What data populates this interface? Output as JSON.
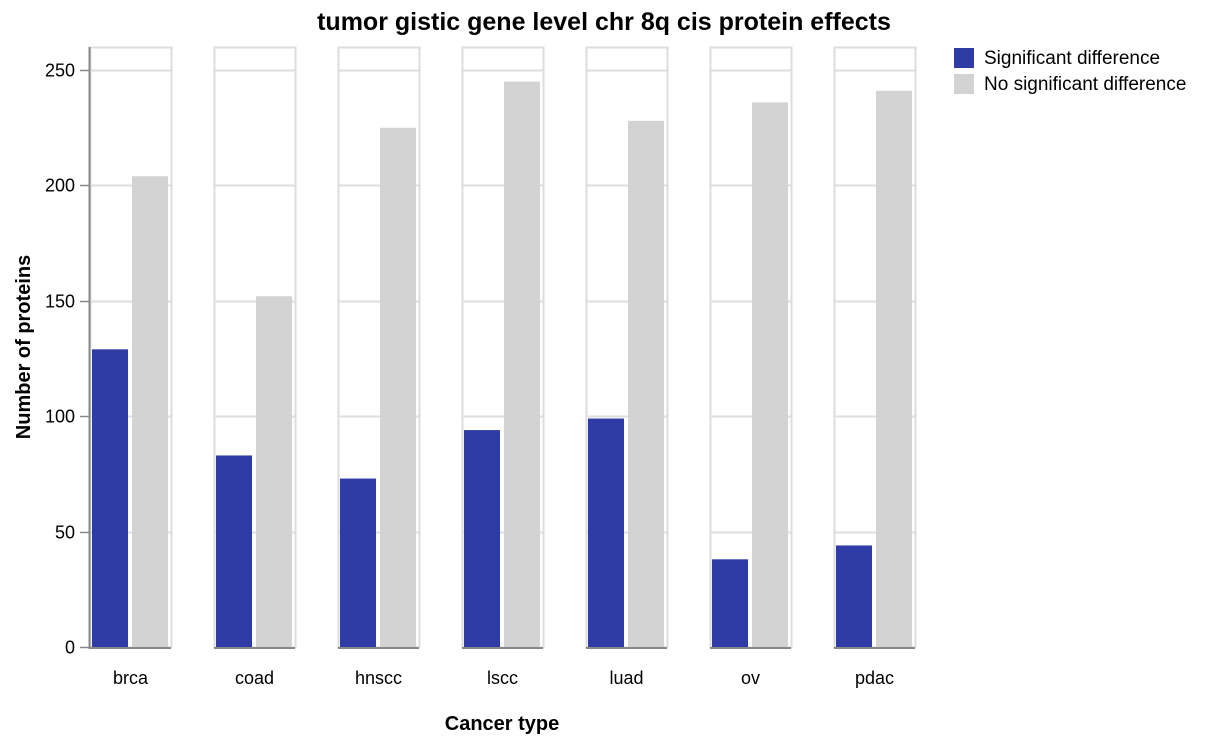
{
  "chart_data": {
    "type": "bar",
    "title": "tumor gistic gene level chr 8q cis protein effects",
    "xlabel": "Cancer type",
    "ylabel": "Number of proteins",
    "ylim": [
      0,
      260
    ],
    "yticks": [
      0,
      50,
      100,
      150,
      200,
      250
    ],
    "categories": [
      "brca",
      "coad",
      "hnscc",
      "lscc",
      "luad",
      "ov",
      "pdac"
    ],
    "series": [
      {
        "name": "Significant difference",
        "color": "#2f3ca6",
        "values": [
          129,
          83,
          73,
          94,
          99,
          38,
          44
        ]
      },
      {
        "name": "No significant difference",
        "color": "#d3d3d3",
        "values": [
          204,
          152,
          225,
          245,
          228,
          236,
          241
        ]
      }
    ],
    "legend_position": "top-right",
    "grid": true
  }
}
